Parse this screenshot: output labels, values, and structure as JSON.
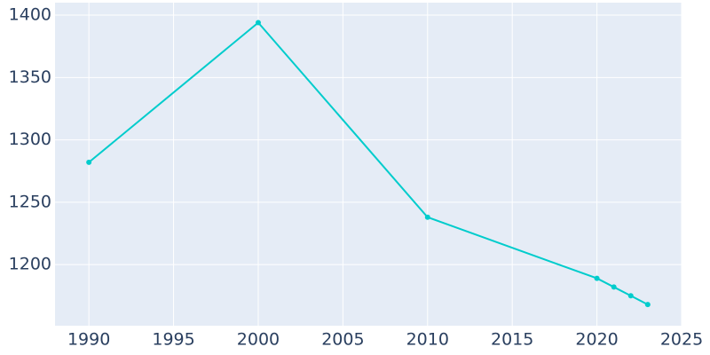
{
  "chart_data": {
    "type": "line",
    "x": [
      1990,
      2000,
      2010,
      2020,
      2021,
      2022,
      2023
    ],
    "series": [
      {
        "color": "#00cccc",
        "values": [
          1282,
          1394,
          1238,
          1189,
          1182,
          1175,
          1168
        ]
      }
    ],
    "xlim": [
      1988,
      2025
    ],
    "xticks": [
      1990,
      1995,
      2000,
      2005,
      2010,
      2015,
      2020,
      2025
    ],
    "ylim": [
      1151,
      1410
    ],
    "yticks": [
      1200,
      1250,
      1300,
      1350,
      1400
    ],
    "grid": true,
    "background": "#e5ecf6"
  }
}
